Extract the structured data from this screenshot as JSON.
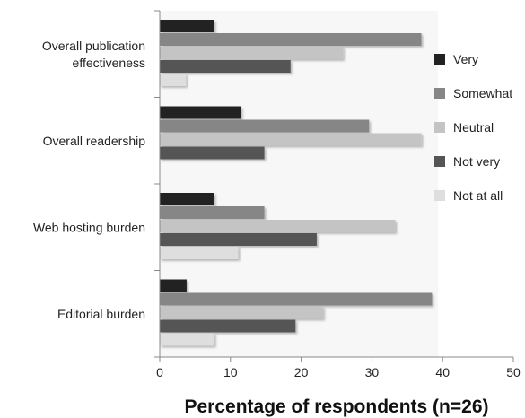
{
  "chart_data": {
    "type": "bar",
    "orientation": "horizontal",
    "title": "",
    "xlabel": "Percentage of respondents (n=26)",
    "ylabel": "",
    "xlim": [
      0,
      50
    ],
    "x_ticks": [
      "0",
      "10",
      "20",
      "30",
      "40",
      "50"
    ],
    "grid": false,
    "legend_position": "right",
    "categories": [
      [
        "Overall publication",
        "effectiveness"
      ],
      [
        "Overall readership"
      ],
      [
        "Web hosting burden"
      ],
      [
        "Editorial burden"
      ]
    ],
    "series": [
      {
        "name": "Very",
        "color": "#222222",
        "values": [
          7.7,
          11.5,
          7.7,
          3.8
        ]
      },
      {
        "name": "Somewhat",
        "color": "#868686",
        "values": [
          37.0,
          29.6,
          14.8,
          38.5
        ]
      },
      {
        "name": "Neutral",
        "color": "#c4c4c4",
        "values": [
          25.9,
          37.0,
          33.3,
          23.1
        ]
      },
      {
        "name": "Not very",
        "color": "#555555",
        "values": [
          18.5,
          14.8,
          22.2,
          19.2
        ]
      },
      {
        "name": "Not at all",
        "color": "#dedede",
        "values": [
          3.7,
          0,
          11.1,
          7.7
        ]
      }
    ]
  }
}
